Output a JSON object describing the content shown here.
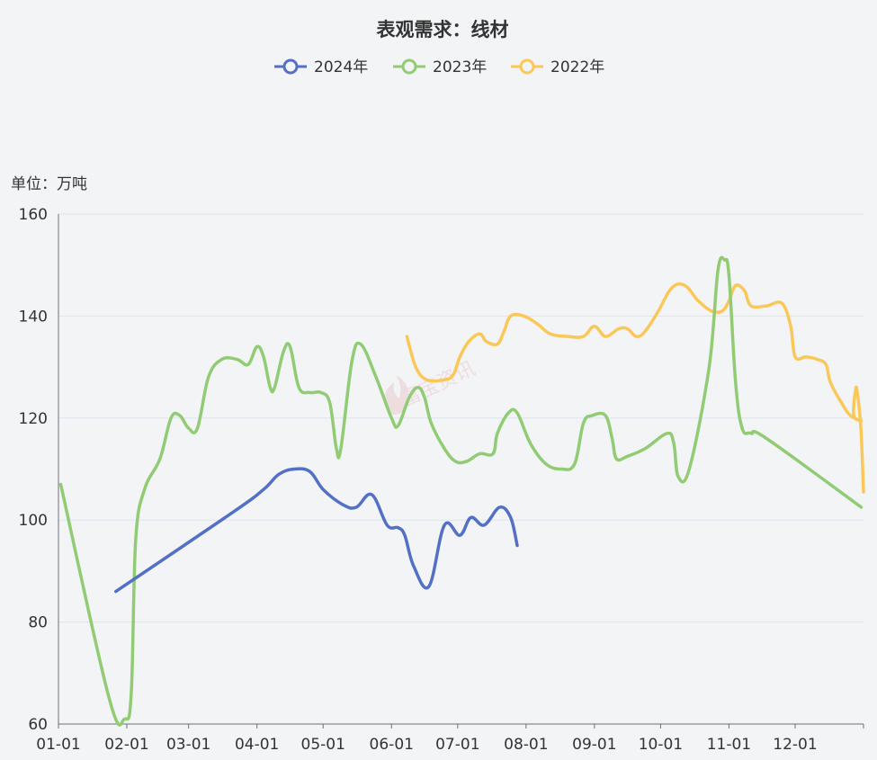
{
  "chart_data": {
    "type": "line",
    "title": "表观需求：线材",
    "unit_label": "单位：万吨",
    "ylim": [
      60,
      160
    ],
    "yticks": [
      60,
      80,
      100,
      120,
      140,
      160
    ],
    "xticks": [
      "01-01",
      "02-01",
      "03-01",
      "04-01",
      "05-01",
      "06-01",
      "07-01",
      "08-01",
      "09-01",
      "10-01",
      "11-01",
      "12-01"
    ],
    "grid": true,
    "legend_position": "top-center",
    "watermark": "富宝资讯",
    "series": [
      {
        "name": "2024年",
        "color": "#5470c6",
        "points": [
          [
            "01-27",
            86
          ],
          [
            "03-21",
            101.5
          ],
          [
            "04-04",
            106
          ],
          [
            "04-11",
            109
          ],
          [
            "04-18",
            110
          ],
          [
            "04-25",
            109.5
          ],
          [
            "05-01",
            106
          ],
          [
            "05-10",
            103
          ],
          [
            "05-16",
            102.5
          ],
          [
            "05-23",
            105
          ],
          [
            "05-30",
            99
          ],
          [
            "06-04",
            98.5
          ],
          [
            "06-07",
            97
          ],
          [
            "06-11",
            91
          ],
          [
            "06-18",
            87
          ],
          [
            "06-25",
            99
          ],
          [
            "07-02",
            97
          ],
          [
            "07-07",
            100.5
          ],
          [
            "07-13",
            99
          ],
          [
            "07-20",
            102.5
          ],
          [
            "07-25",
            100.5
          ],
          [
            "07-28",
            95
          ]
        ]
      },
      {
        "name": "2023年",
        "color": "#91cc75",
        "points": [
          [
            "01-02",
            107
          ],
          [
            "01-24",
            65
          ],
          [
            "01-31",
            61
          ],
          [
            "02-03",
            66
          ],
          [
            "02-05",
            96
          ],
          [
            "02-09",
            106
          ],
          [
            "02-16",
            112
          ],
          [
            "02-21",
            120
          ],
          [
            "02-25",
            120.5
          ],
          [
            "03-01",
            118
          ],
          [
            "03-05",
            118
          ],
          [
            "03-10",
            128
          ],
          [
            "03-16",
            131.5
          ],
          [
            "03-23",
            131.5
          ],
          [
            "03-28",
            130.5
          ],
          [
            "04-01",
            134
          ],
          [
            "04-04",
            132
          ],
          [
            "04-07",
            126
          ],
          [
            "04-09",
            126
          ],
          [
            "04-13",
            133
          ],
          [
            "04-16",
            134
          ],
          [
            "04-20",
            126
          ],
          [
            "04-25",
            125
          ],
          [
            "04-30",
            125
          ],
          [
            "05-04",
            123
          ],
          [
            "05-07",
            114
          ],
          [
            "05-09",
            114
          ],
          [
            "05-14",
            131
          ],
          [
            "05-18",
            134.5
          ],
          [
            "05-25",
            128
          ],
          [
            "06-01",
            120
          ],
          [
            "06-04",
            118.5
          ],
          [
            "06-09",
            124
          ],
          [
            "06-13",
            126
          ],
          [
            "06-16",
            124
          ],
          [
            "06-19",
            119
          ],
          [
            "06-25",
            114
          ],
          [
            "06-30",
            111.5
          ],
          [
            "07-05",
            111.5
          ],
          [
            "07-11",
            113
          ],
          [
            "07-17",
            113
          ],
          [
            "07-19",
            117
          ],
          [
            "07-24",
            121
          ],
          [
            "07-28",
            121
          ],
          [
            "08-03",
            115
          ],
          [
            "08-10",
            111
          ],
          [
            "08-17",
            110
          ],
          [
            "08-23",
            111
          ],
          [
            "08-27",
            119
          ],
          [
            "08-31",
            120.5
          ],
          [
            "09-06",
            120.5
          ],
          [
            "09-09",
            116
          ],
          [
            "09-11",
            112
          ],
          [
            "09-16",
            112.5
          ],
          [
            "09-24",
            114
          ],
          [
            "10-04",
            117
          ],
          [
            "10-07",
            115
          ],
          [
            "10-09",
            108.5
          ],
          [
            "10-14",
            110
          ],
          [
            "10-23",
            130
          ],
          [
            "10-27",
            149
          ],
          [
            "10-30",
            151
          ],
          [
            "11-01",
            148
          ],
          [
            "11-04",
            127
          ],
          [
            "11-07",
            118
          ],
          [
            "11-11",
            117
          ],
          [
            "11-18",
            116
          ],
          [
            "12-31",
            102.5
          ]
        ]
      },
      {
        "name": "2022年",
        "color": "#fac858",
        "points": [
          [
            "06-08",
            136
          ],
          [
            "06-12",
            130
          ],
          [
            "06-17",
            127.5
          ],
          [
            "06-25",
            127.5
          ],
          [
            "06-29",
            128.5
          ],
          [
            "07-02",
            132
          ],
          [
            "07-06",
            135
          ],
          [
            "07-11",
            136.5
          ],
          [
            "07-14",
            135
          ],
          [
            "07-19",
            134.5
          ],
          [
            "07-22",
            137
          ],
          [
            "07-25",
            140
          ],
          [
            "07-31",
            140
          ],
          [
            "08-06",
            138.5
          ],
          [
            "08-12",
            136.5
          ],
          [
            "08-20",
            136
          ],
          [
            "08-27",
            136
          ],
          [
            "09-01",
            138
          ],
          [
            "09-06",
            136
          ],
          [
            "09-12",
            137.5
          ],
          [
            "09-16",
            137.5
          ],
          [
            "09-20",
            136
          ],
          [
            "09-24",
            137
          ],
          [
            "09-30",
            141
          ],
          [
            "10-06",
            145.5
          ],
          [
            "10-12",
            146
          ],
          [
            "10-18",
            143
          ],
          [
            "10-24",
            141
          ],
          [
            "10-29",
            141
          ],
          [
            "11-01",
            143
          ],
          [
            "11-04",
            146
          ],
          [
            "11-08",
            145
          ],
          [
            "11-11",
            142
          ],
          [
            "11-18",
            142
          ],
          [
            "11-25",
            142.5
          ],
          [
            "11-29",
            138
          ],
          [
            "12-01",
            132
          ],
          [
            "12-06",
            132
          ],
          [
            "12-11",
            131.5
          ],
          [
            "12-15",
            130.5
          ],
          [
            "12-17",
            127
          ],
          [
            "12-22",
            123
          ],
          [
            "12-26",
            120.5
          ],
          [
            "12-31",
            119.5
          ],
          [
            "01-04",
            120.5
          ],
          [
            "01-08",
            125.5
          ],
          [
            "01-12",
            125
          ],
          [
            "01-20",
            118
          ],
          [
            "01-26",
            105.5
          ]
        ]
      }
    ]
  }
}
